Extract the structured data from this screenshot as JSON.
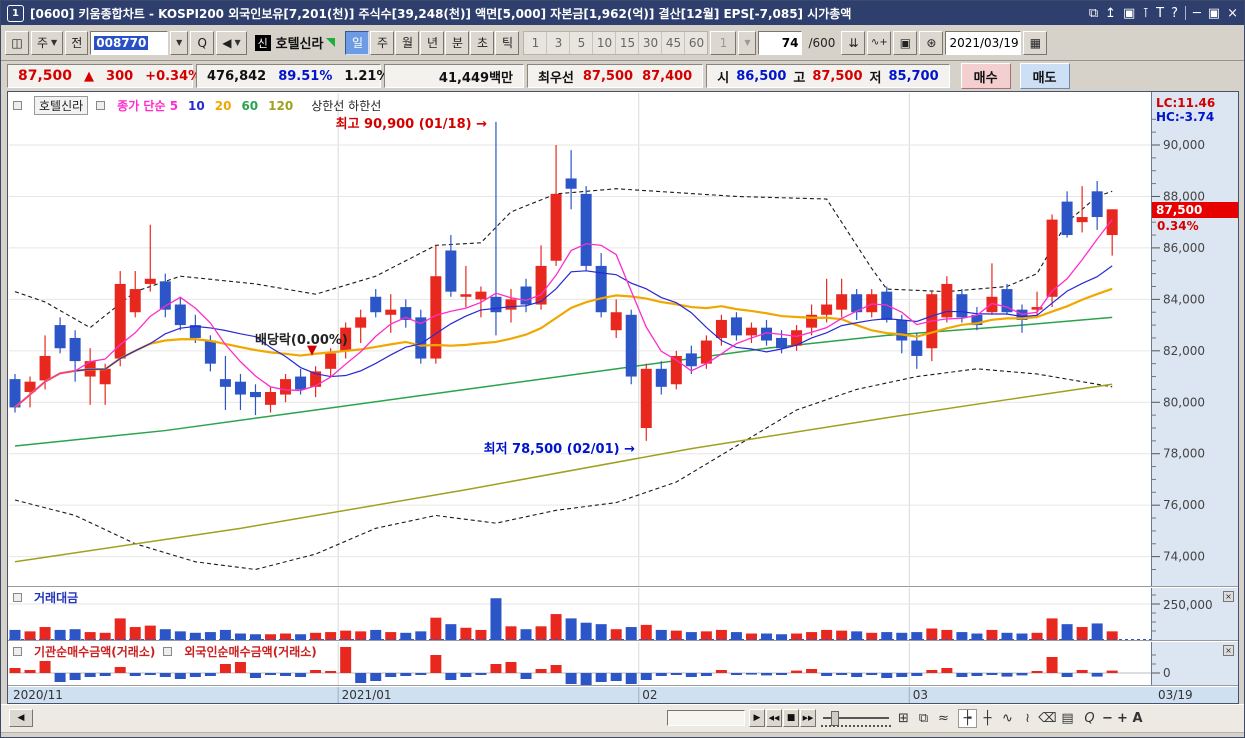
{
  "window": {
    "badge": "1",
    "title": "[0600] 키움종합차트 - KOSPI200 외국인보유[7,201(천)] 주식수[39,248(천)] 액면[5,000] 자본금[1,962(억)] 결산[12월] EPS[-7,085] 시가총액",
    "controls": {
      "popup": "⧉",
      "top": "↥",
      "copy": "▣",
      "pin": "⊺",
      "text": "T",
      "help": "?",
      "min": "─",
      "restore": "▣",
      "close": "×"
    }
  },
  "icons": {
    "menu": "◫",
    "dropdown": "▼",
    "search": "Q",
    "speaker": "◀",
    "candle_add": "⇊",
    "line_add": "∿+",
    "save": "▣",
    "gear": "⊛",
    "calendar": "▦",
    "close_small": "×"
  },
  "toolbar": {
    "chart_combo": "주",
    "prev_button": "전",
    "code_value": "008770",
    "stock_badge": "신",
    "stock_name": "호텔신라",
    "periods": [
      "일",
      "주",
      "월",
      "년",
      "분",
      "초",
      "틱"
    ],
    "active_period": "일",
    "ticks": [
      "1",
      "3",
      "5",
      "10",
      "15",
      "30",
      "45",
      "60"
    ],
    "minute": "1",
    "bar_count": "74",
    "bar_total": "/600",
    "date": "2021/03/19"
  },
  "quote": {
    "price": "87,500",
    "arrow": "▲",
    "change": "300",
    "change_pct": "+0.34%",
    "volume": "476,842",
    "ratio1": "89.51%",
    "ratio2": "1.21%",
    "value": "41,449백만",
    "best_label": "최우선",
    "best_ask": "87,500",
    "best_bid": "87,400",
    "open_label": "시",
    "open": "86,500",
    "high_label": "고",
    "high": "87,500",
    "low_label": "저",
    "low": "85,700",
    "buy": "매수",
    "sell": "매도"
  },
  "legend": {
    "stock": "호텔신라",
    "ma_items": [
      {
        "label": "종가 단순 5",
        "color": "#ff2ccc"
      },
      {
        "label": "10",
        "color": "#2929d4"
      },
      {
        "label": "20",
        "color": "#f0a800"
      },
      {
        "label": "60",
        "color": "#2ba34d"
      },
      {
        "label": "120",
        "color": "#a0a020"
      }
    ],
    "band_label": "상한선  하한선",
    "volume_label": "거래대금",
    "inst_label": "기관순매수금액(거래소)",
    "foreign_label": "외국인순매수금액(거래소)"
  },
  "annotations": {
    "high": "최고 90,900 (01/18)",
    "high_arrow": "→",
    "low": "최저 78,500 (02/01)",
    "low_arrow": "→",
    "exdiv": "배당락(0.00%)",
    "exdiv_arrow": "▼"
  },
  "right_axis": {
    "lc": "LC:11.46",
    "hc": "HC:-3.74",
    "badge": "87,500",
    "badge_pct": "0.34%",
    "vol_tick": "250,000",
    "net_tick": "0"
  },
  "date_axis": [
    "2020/11",
    "2021/01",
    "02",
    "03",
    "03/19"
  ],
  "scroll": {
    "left_arrow": "◀",
    "play": "▶",
    "rew": "◀◀",
    "stop": "■",
    "ffwd": "▶▶",
    "icons": {
      "thumb": "⊞",
      "cascade": "⧉",
      "pattern": "≈",
      "cross1": "┾",
      "cross2": "┼",
      "wave": "∿",
      "draw": "≀",
      "eraser": "⌫",
      "panel": "▤"
    },
    "magnifier": "Q",
    "zoom_out": "−",
    "zoom_in": "+",
    "text_btn": "A"
  },
  "chart_data": {
    "type": "candlestick",
    "title": "호텔신라 일봉차트 (2020/11 - 2021/03/19)",
    "y_ticks": [
      90000,
      88000,
      86000,
      84000,
      82000,
      80000,
      78000,
      76000,
      74000
    ],
    "volume_grid": 250000,
    "month_marks": [
      {
        "label": "2021/01",
        "index": 22
      },
      {
        "label": "02",
        "index": 42
      },
      {
        "label": "03",
        "index": 60
      }
    ],
    "candles": [
      [
        80900,
        81100,
        79600,
        79800
      ],
      [
        80400,
        81000,
        79800,
        80800
      ],
      [
        80850,
        82600,
        80500,
        81800
      ],
      [
        83000,
        83300,
        81900,
        82100
      ],
      [
        82500,
        82800,
        80800,
        81600
      ],
      [
        81000,
        82100,
        79900,
        81600
      ],
      [
        80700,
        81500,
        79900,
        81300
      ],
      [
        81700,
        85100,
        81400,
        84600
      ],
      [
        83500,
        85100,
        83300,
        84400
      ],
      [
        84600,
        86900,
        84300,
        84800
      ],
      [
        84700,
        85000,
        83300,
        83600
      ],
      [
        83800,
        84100,
        82800,
        83000
      ],
      [
        83000,
        83400,
        82300,
        82500
      ],
      [
        82400,
        82600,
        81200,
        81500
      ],
      [
        80900,
        81800,
        79700,
        80600
      ],
      [
        80800,
        81100,
        79700,
        80300
      ],
      [
        80400,
        80700,
        79500,
        80200
      ],
      [
        79900,
        80600,
        79600,
        80400
      ],
      [
        80300,
        81100,
        80000,
        80900
      ],
      [
        81000,
        81300,
        80300,
        80500
      ],
      [
        80600,
        81400,
        80200,
        81200
      ],
      [
        81300,
        82100,
        81000,
        81900
      ],
      [
        82000,
        83100,
        81700,
        82900
      ],
      [
        82900,
        83600,
        82300,
        83300
      ],
      [
        84100,
        84400,
        83300,
        83500
      ],
      [
        83400,
        84200,
        82700,
        83600
      ],
      [
        83700,
        84000,
        82900,
        83200
      ],
      [
        83300,
        83600,
        81500,
        81700
      ],
      [
        81700,
        86100,
        81500,
        84900
      ],
      [
        85900,
        86500,
        84100,
        84300
      ],
      [
        84100,
        85300,
        83700,
        84200
      ],
      [
        84000,
        84500,
        83300,
        84300
      ],
      [
        84100,
        90900,
        82600,
        83500
      ],
      [
        83600,
        84400,
        83100,
        84000
      ],
      [
        84500,
        84800,
        83500,
        83800
      ],
      [
        83800,
        86100,
        83600,
        85300
      ],
      [
        85500,
        90000,
        85300,
        88100
      ],
      [
        88700,
        89800,
        87500,
        88300
      ],
      [
        88100,
        88400,
        85100,
        85300
      ],
      [
        85300,
        85800,
        83300,
        83500
      ],
      [
        82800,
        84000,
        82500,
        83500
      ],
      [
        83400,
        83600,
        80700,
        81000
      ],
      [
        79000,
        81500,
        78500,
        81300
      ],
      [
        81300,
        81600,
        80300,
        80600
      ],
      [
        80700,
        82000,
        80500,
        81800
      ],
      [
        81900,
        82200,
        81100,
        81400
      ],
      [
        81500,
        82600,
        81300,
        82400
      ],
      [
        82500,
        83400,
        82200,
        83200
      ],
      [
        83300,
        83500,
        82400,
        82600
      ],
      [
        82600,
        83100,
        82300,
        82900
      ],
      [
        82900,
        83200,
        82200,
        82400
      ],
      [
        82500,
        82800,
        81900,
        82100
      ],
      [
        82200,
        83000,
        82000,
        82800
      ],
      [
        82900,
        83800,
        82600,
        83400
      ],
      [
        83400,
        84800,
        83100,
        83800
      ],
      [
        83600,
        84800,
        83300,
        84200
      ],
      [
        84200,
        84400,
        83200,
        83500
      ],
      [
        83500,
        84400,
        83300,
        84200
      ],
      [
        84300,
        84500,
        83100,
        83200
      ],
      [
        83200,
        83400,
        81900,
        82400
      ],
      [
        82400,
        82700,
        81300,
        81800
      ],
      [
        82100,
        84300,
        81600,
        84200
      ],
      [
        83300,
        84900,
        83100,
        84600
      ],
      [
        84200,
        84400,
        83100,
        83300
      ],
      [
        83400,
        83700,
        82800,
        83000
      ],
      [
        83500,
        85400,
        83400,
        84100
      ],
      [
        84400,
        84600,
        83400,
        83500
      ],
      [
        83600,
        83800,
        82700,
        83200
      ],
      [
        83600,
        84300,
        83300,
        83700
      ],
      [
        84100,
        87300,
        83700,
        87100
      ],
      [
        87800,
        88200,
        86400,
        86500
      ],
      [
        87000,
        88400,
        86600,
        87200
      ],
      [
        88200,
        88600,
        86700,
        87200
      ],
      [
        86500,
        87500,
        85700,
        87500
      ]
    ],
    "volume": [
      70000,
      60000,
      90000,
      70000,
      75000,
      55000,
      50000,
      150000,
      90000,
      100000,
      75000,
      60000,
      50000,
      55000,
      70000,
      45000,
      40000,
      40000,
      45000,
      40000,
      50000,
      55000,
      65000,
      60000,
      70000,
      55000,
      50000,
      60000,
      155000,
      110000,
      85000,
      70000,
      290000,
      95000,
      75000,
      95000,
      180000,
      150000,
      120000,
      110000,
      75000,
      90000,
      105000,
      70000,
      65000,
      55000,
      60000,
      70000,
      55000,
      45000,
      45000,
      40000,
      45000,
      55000,
      70000,
      65000,
      60000,
      50000,
      55000,
      50000,
      55000,
      80000,
      70000,
      55000,
      45000,
      70000,
      50000,
      45000,
      50000,
      150000,
      110000,
      90000,
      115000,
      60000
    ],
    "net_buy": [
      25,
      15,
      60,
      -45,
      -35,
      -20,
      -15,
      30,
      -15,
      -10,
      -20,
      -30,
      -20,
      -15,
      45,
      55,
      -25,
      -10,
      -15,
      -20,
      15,
      10,
      130,
      -50,
      -40,
      -20,
      -15,
      -10,
      90,
      -35,
      -20,
      -10,
      45,
      55,
      -30,
      20,
      40,
      -55,
      -60,
      -45,
      -40,
      -55,
      -35,
      -15,
      -10,
      -20,
      -15,
      15,
      -10,
      -8,
      -12,
      -10,
      12,
      20,
      -15,
      -10,
      -20,
      -10,
      -25,
      -20,
      -15,
      15,
      25,
      -20,
      -15,
      -10,
      -18,
      -12,
      10,
      80,
      -20,
      15,
      -18,
      12
    ],
    "ma60": [
      [
        0,
        78300
      ],
      [
        10,
        78900
      ],
      [
        20,
        79700
      ],
      [
        30,
        80500
      ],
      [
        40,
        81300
      ],
      [
        50,
        82100
      ],
      [
        58,
        82600
      ],
      [
        66,
        82950
      ],
      [
        73,
        83300
      ]
    ],
    "ma120": [
      [
        0,
        73800
      ],
      [
        15,
        75100
      ],
      [
        30,
        76600
      ],
      [
        45,
        78200
      ],
      [
        58,
        79400
      ],
      [
        66,
        80100
      ],
      [
        73,
        80700
      ]
    ],
    "upper_band": [
      [
        0,
        84300
      ],
      [
        2,
        83900
      ],
      [
        5,
        82900
      ],
      [
        8,
        84300
      ],
      [
        11,
        84900
      ],
      [
        16,
        84600
      ],
      [
        20,
        84200
      ],
      [
        24,
        84900
      ],
      [
        28,
        86100
      ],
      [
        31,
        86200
      ],
      [
        33,
        87400
      ],
      [
        36,
        88100
      ],
      [
        40,
        88300
      ],
      [
        48,
        88000
      ],
      [
        54,
        87900
      ],
      [
        55,
        87000
      ],
      [
        57,
        85200
      ],
      [
        58,
        84400
      ],
      [
        62,
        84300
      ],
      [
        66,
        84500
      ],
      [
        68,
        85000
      ],
      [
        70,
        87000
      ],
      [
        72,
        88000
      ],
      [
        73,
        88200
      ]
    ],
    "lower_band": [
      [
        0,
        76200
      ],
      [
        4,
        75600
      ],
      [
        8,
        74500
      ],
      [
        12,
        73800
      ],
      [
        16,
        73500
      ],
      [
        20,
        74100
      ],
      [
        24,
        75100
      ],
      [
        28,
        75600
      ],
      [
        32,
        75300
      ],
      [
        36,
        75800
      ],
      [
        40,
        76100
      ],
      [
        44,
        76900
      ],
      [
        48,
        78300
      ],
      [
        52,
        79700
      ],
      [
        56,
        80500
      ],
      [
        60,
        81000
      ],
      [
        64,
        81300
      ],
      [
        68,
        81100
      ],
      [
        71,
        80800
      ],
      [
        73,
        80600
      ]
    ],
    "colors": {
      "up": "#e8281e",
      "down": "#2c55c8",
      "ma5": "#ff2ccc",
      "ma10": "#2929d4",
      "ma20": "#f0a800",
      "ma60": "#2ba34d",
      "ma120": "#a0a020",
      "band": "#1a1a1a",
      "grid": "#e6e6e6",
      "vline": "#d9d9d9",
      "axis_text": "#444"
    }
  }
}
